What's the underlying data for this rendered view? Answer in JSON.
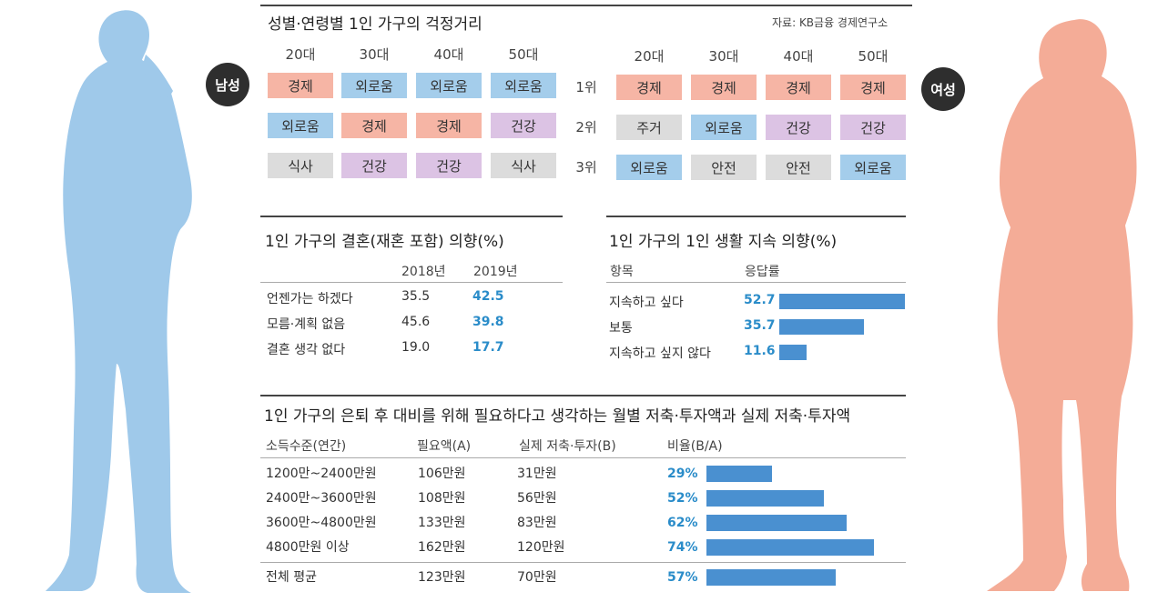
{
  "worry_section": {
    "title": "성별·연령별 1인 가구의 걱정거리",
    "source": "자료: KB금융 경제연구소",
    "male_label": "남성",
    "female_label": "여성",
    "age_groups": [
      "20대",
      "30대",
      "40대",
      "50대"
    ],
    "ranks": [
      "1위",
      "2위",
      "3위"
    ],
    "male": [
      [
        "경제",
        "외로움",
        "외로움",
        "외로움"
      ],
      [
        "외로움",
        "경제",
        "경제",
        "건강"
      ],
      [
        "식사",
        "건강",
        "건강",
        "식사"
      ]
    ],
    "female": [
      [
        "경제",
        "경제",
        "경제",
        "경제"
      ],
      [
        "주거",
        "외로움",
        "건강",
        "건강"
      ],
      [
        "외로움",
        "안전",
        "안전",
        "외로움"
      ]
    ],
    "category_colors": {
      "경제": "#f6b5a5",
      "외로움": "#a4cdeb",
      "건강": "#dcc3e4",
      "기타": "#dcdcdc"
    }
  },
  "marriage_section": {
    "title": "1인 가구의 결혼(재혼 포함) 의향(%)",
    "col_2018": "2018년",
    "col_2019": "2019년",
    "rows": [
      {
        "label": "언젠가는 하겠다",
        "y2018": "35.5",
        "y2019": "42.5"
      },
      {
        "label": "모름·계획 없음",
        "y2018": "45.6",
        "y2019": "39.8"
      },
      {
        "label": "결혼 생각 없다",
        "y2018": "19.0",
        "y2019": "17.7"
      }
    ]
  },
  "solo_section": {
    "title": "1인 가구의 1인 생활 지속 의향(%)",
    "col_item": "항목",
    "col_rate": "응답률"
  },
  "retire_section": {
    "title": "1인 가구의 은퇴 후 대비를 위해 필요하다고 생각하는 월별 저축·투자액과 실제 저축·투자액",
    "col_income": "소득수준(연간)",
    "col_needed": "필요액(A)",
    "col_actual": "실제 저축·투자(B)",
    "col_ratio": "비율(B/A)",
    "rows": [
      {
        "income": "1200만~2400만원",
        "needed": "106만원",
        "actual": "31만원"
      },
      {
        "income": "2400만~3600만원",
        "needed": "108만원",
        "actual": "56만원"
      },
      {
        "income": "3600만~4800만원",
        "needed": "133만원",
        "actual": "83만원"
      },
      {
        "income": "4800만원 이상",
        "needed": "162만원",
        "actual": "120만원"
      },
      {
        "income": "전체 평균",
        "needed": "123만원",
        "actual": "70만원"
      }
    ]
  },
  "chart_data": [
    {
      "type": "bar",
      "title": "1인 가구의 1인 생활 지속 의향(%)",
      "categories": [
        "지속하고 싶다",
        "보통",
        "지속하고 싶지 않다"
      ],
      "values": [
        52.7,
        35.7,
        11.6
      ],
      "value_labels": [
        "52.7",
        "35.7",
        "11.6"
      ],
      "xlabel": "항목",
      "ylabel": "응답률",
      "ylim": [
        0,
        52.7
      ]
    },
    {
      "type": "bar",
      "title": "비율(B/A)",
      "categories": [
        "1200만~2400만원",
        "2400만~3600만원",
        "3600만~4800만원",
        "4800만원 이상",
        "전체 평균"
      ],
      "values": [
        29,
        52,
        62,
        74,
        57
      ],
      "value_labels": [
        "29%",
        "52%",
        "62%",
        "74%",
        "57%"
      ],
      "xlabel": "소득수준(연간)",
      "ylabel": "비율(B/A)",
      "ylim": [
        0,
        74
      ]
    }
  ]
}
